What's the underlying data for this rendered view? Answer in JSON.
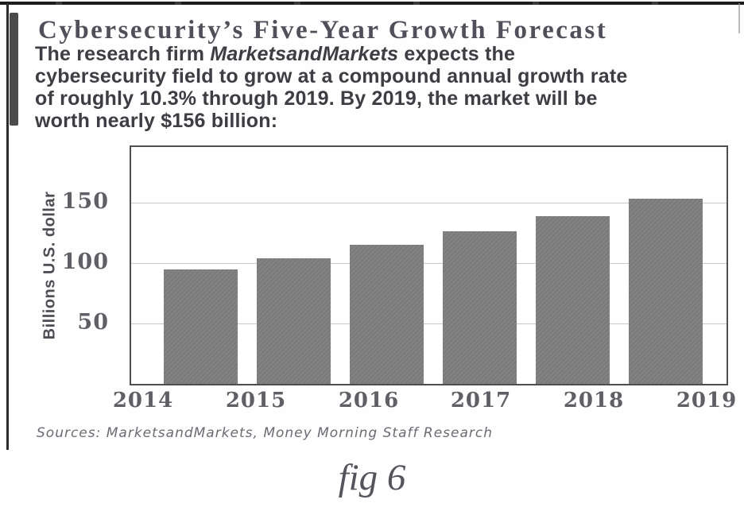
{
  "header": {
    "title": "Cybersecurity’s Five-Year Growth Forecast"
  },
  "intro": {
    "line1_pre": "The research firm ",
    "line1_em": "MarketsandMarkets",
    "line1_post": " expects the",
    "line2": "cybersecurity field to grow at a compound annual growth rate",
    "line3": "of roughly 10.3% through 2019. By 2019, the market will be",
    "line4": "worth nearly $156 billion:"
  },
  "chart_data": {
    "type": "bar",
    "title": "Cybersecurity’s Five-Year Growth Forecast",
    "categories": [
      "2014",
      "2015",
      "2016",
      "2017",
      "2018",
      "2019"
    ],
    "values": [
      95,
      104,
      115,
      126,
      139,
      153
    ],
    "xlabel": "",
    "ylabel": "Billions U.S. dollar",
    "yticks": [
      50,
      100,
      150
    ],
    "ylim": [
      0,
      196
    ],
    "grid": true,
    "legend": false,
    "bar_color": "#7e7e7e",
    "grid_color": "#c7c7c7"
  },
  "footer": {
    "sources": "Sources: MarketsandMarkets, Money Morning Staff Research",
    "caption": "fig 6"
  }
}
